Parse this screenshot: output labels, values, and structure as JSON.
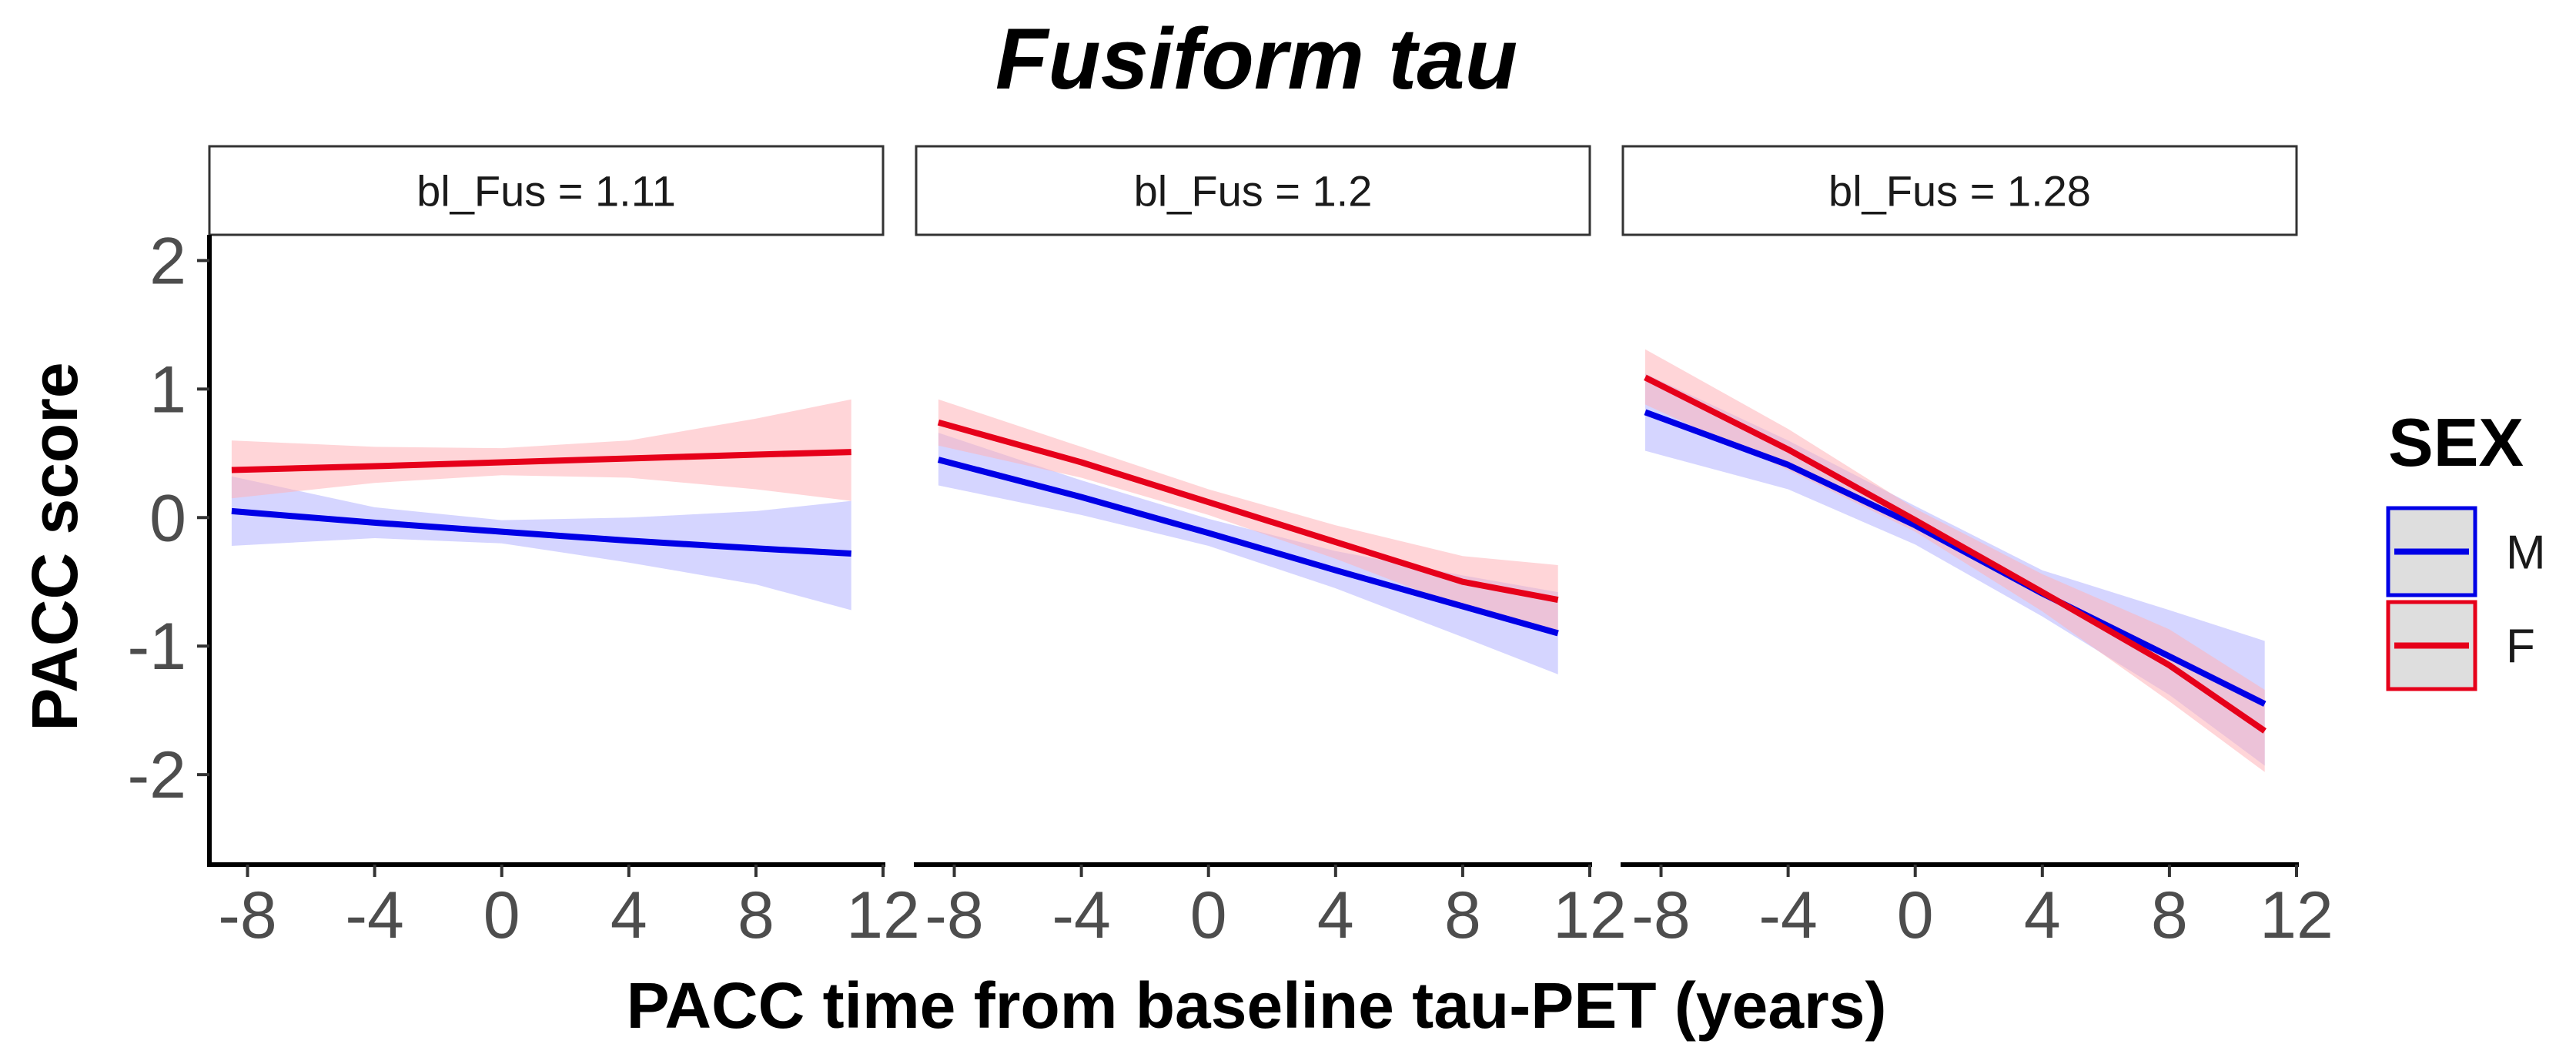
{
  "colors": {
    "M": "#0000e6",
    "F": "#e6001a",
    "M_ribbon": "#b3b3ff",
    "F_ribbon": "#ffb3b8"
  },
  "chart_data": {
    "type": "line",
    "title": "Fusiform tau",
    "xlabel": "PACC time from baseline tau-PET (years)",
    "ylabel": "PACC score",
    "xlim": [
      -9.2,
      12
    ],
    "ylim": [
      -2.7,
      2.2
    ],
    "x_ticks": [
      -8,
      -4,
      0,
      4,
      8,
      12
    ],
    "x_tick_labels": [
      "-8",
      "-4",
      "0",
      "4",
      "8",
      "12"
    ],
    "y_ticks": [
      -2,
      -1,
      0,
      1,
      2
    ],
    "y_tick_labels": [
      "-2",
      "-1",
      "0",
      "1",
      "2"
    ],
    "grid": false,
    "legend": {
      "title": "SEX",
      "position": "right",
      "entries": [
        {
          "key": "M",
          "label": "M"
        },
        {
          "key": "F",
          "label": "F"
        }
      ]
    },
    "panels": [
      {
        "strip": "bl_Fus = 1.11",
        "series": [
          {
            "key": "M",
            "x": [
              -8.5,
              -4,
              0,
              4,
              8,
              11
            ],
            "y": [
              0.05,
              -0.04,
              -0.11,
              -0.18,
              -0.24,
              -0.28
            ],
            "lower": [
              -0.22,
              -0.16,
              -0.2,
              -0.35,
              -0.52,
              -0.72
            ],
            "upper": [
              0.32,
              0.08,
              -0.02,
              0.0,
              0.05,
              0.13
            ]
          },
          {
            "key": "F",
            "x": [
              -8.5,
              -4,
              0,
              4,
              8,
              11
            ],
            "y": [
              0.37,
              0.4,
              0.43,
              0.46,
              0.49,
              0.51
            ],
            "lower": [
              0.15,
              0.27,
              0.33,
              0.31,
              0.22,
              0.13
            ],
            "upper": [
              0.6,
              0.55,
              0.54,
              0.6,
              0.77,
              0.92
            ]
          }
        ]
      },
      {
        "strip": "bl_Fus = 1.2",
        "series": [
          {
            "key": "M",
            "x": [
              -8.5,
              -4,
              0,
              4,
              8,
              11
            ],
            "y": [
              0.45,
              0.16,
              -0.12,
              -0.41,
              -0.69,
              -0.9
            ],
            "lower": [
              0.25,
              0.02,
              -0.22,
              -0.55,
              -0.93,
              -1.22
            ],
            "upper": [
              0.66,
              0.29,
              -0.01,
              -0.26,
              -0.45,
              -0.58
            ]
          },
          {
            "key": "F",
            "x": [
              -8.5,
              -4,
              0,
              4,
              8,
              11
            ],
            "y": [
              0.74,
              0.43,
              0.12,
              -0.19,
              -0.5,
              -0.64
            ],
            "lower": [
              0.56,
              0.31,
              0.02,
              -0.32,
              -0.7,
              -0.91
            ],
            "upper": [
              0.92,
              0.55,
              0.22,
              -0.06,
              -0.3,
              -0.37
            ]
          }
        ]
      },
      {
        "strip": "bl_Fus = 1.28",
        "series": [
          {
            "key": "M",
            "x": [
              -8.5,
              -4,
              0,
              4,
              8,
              11
            ],
            "y": [
              0.82,
              0.41,
              -0.06,
              -0.59,
              -1.08,
              -1.45
            ],
            "lower": [
              0.52,
              0.22,
              -0.21,
              -0.77,
              -1.38,
              -1.93
            ],
            "upper": [
              1.12,
              0.6,
              0.09,
              -0.41,
              -0.72,
              -0.96
            ]
          },
          {
            "key": "F",
            "x": [
              -8.5,
              -4,
              0,
              4,
              8,
              11
            ],
            "y": [
              1.09,
              0.53,
              -0.02,
              -0.58,
              -1.15,
              -1.66
            ],
            "lower": [
              0.88,
              0.37,
              -0.11,
              -0.73,
              -1.43,
              -1.98
            ],
            "upper": [
              1.31,
              0.69,
              0.07,
              -0.44,
              -0.87,
              -1.34
            ]
          }
        ]
      }
    ]
  }
}
